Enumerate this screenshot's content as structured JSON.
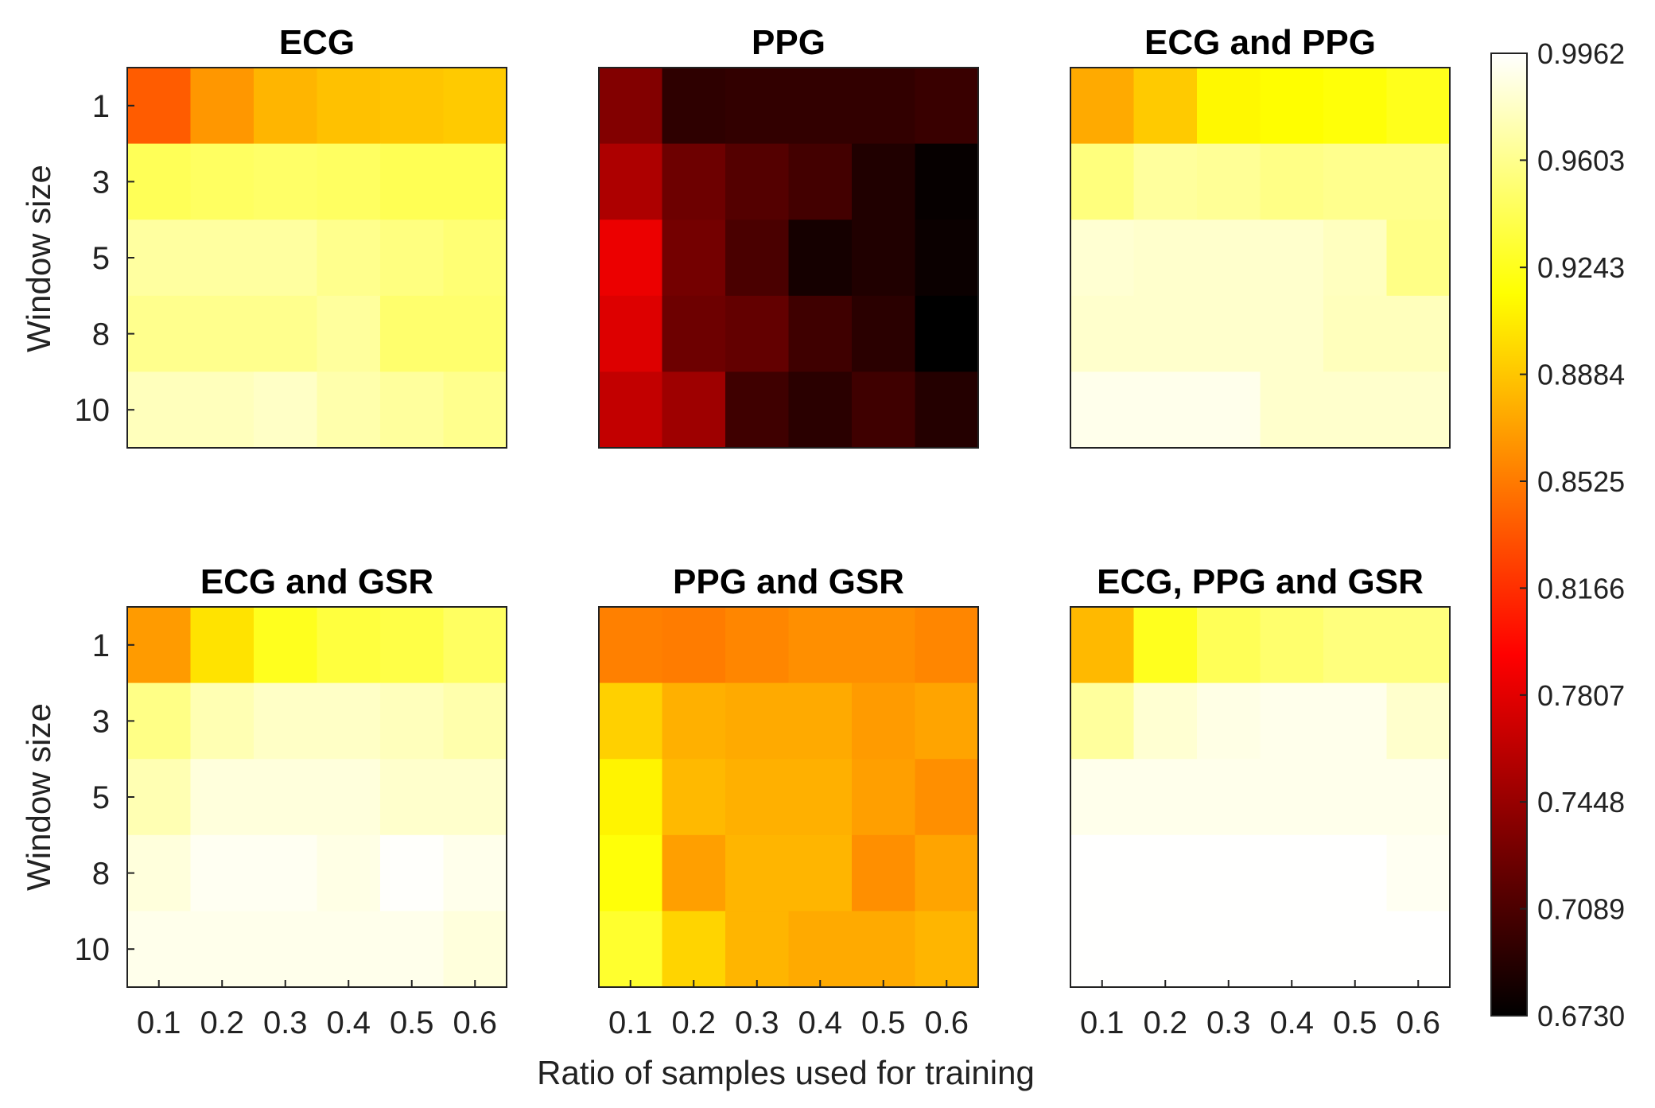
{
  "figure": {
    "xlabel": "Ratio of samples used for training",
    "ylabel": "Window size"
  },
  "chart_data": {
    "type": "heatmap",
    "x_categories": [
      "0.1",
      "0.2",
      "0.3",
      "0.4",
      "0.5",
      "0.6"
    ],
    "y_categories": [
      "1",
      "3",
      "5",
      "8",
      "10"
    ],
    "colormap": "hot",
    "value_range": [
      0.673,
      0.9962
    ],
    "colorbar_ticks": [
      "0.9962",
      "0.9603",
      "0.9243",
      "0.8884",
      "0.8525",
      "0.8166",
      "0.7807",
      "0.7448",
      "0.7089",
      "0.6730"
    ],
    "panels": [
      {
        "title": "ECG",
        "values": [
          [
            0.838,
            0.866,
            0.88,
            0.886,
            0.888,
            0.89
          ],
          [
            0.943,
            0.946,
            0.948,
            0.946,
            0.942,
            0.942
          ],
          [
            0.966,
            0.966,
            0.966,
            0.96,
            0.956,
            0.952
          ],
          [
            0.96,
            0.96,
            0.96,
            0.965,
            0.95,
            0.95
          ],
          [
            0.975,
            0.975,
            0.978,
            0.97,
            0.965,
            0.96
          ]
        ]
      },
      {
        "title": "PPG",
        "values": [
          [
            0.735,
            0.695,
            0.697,
            0.697,
            0.697,
            0.7
          ],
          [
            0.755,
            0.725,
            0.713,
            0.705,
            0.688,
            0.676
          ],
          [
            0.785,
            0.728,
            0.708,
            0.683,
            0.688,
            0.678
          ],
          [
            0.778,
            0.725,
            0.72,
            0.703,
            0.693,
            0.673
          ],
          [
            0.765,
            0.748,
            0.703,
            0.693,
            0.703,
            0.69
          ]
        ]
      },
      {
        "title": "ECG and PPG",
        "values": [
          [
            0.875,
            0.89,
            0.912,
            0.915,
            0.918,
            0.924
          ],
          [
            0.955,
            0.965,
            0.963,
            0.958,
            0.96,
            0.96
          ],
          [
            0.982,
            0.98,
            0.98,
            0.98,
            0.976,
            0.958
          ],
          [
            0.98,
            0.98,
            0.98,
            0.98,
            0.975,
            0.975
          ],
          [
            0.99,
            0.99,
            0.99,
            0.98,
            0.98,
            0.98
          ]
        ]
      },
      {
        "title": "ECG and GSR",
        "values": [
          [
            0.868,
            0.902,
            0.925,
            0.935,
            0.938,
            0.946
          ],
          [
            0.958,
            0.972,
            0.978,
            0.978,
            0.975,
            0.97
          ],
          [
            0.972,
            0.985,
            0.985,
            0.985,
            0.98,
            0.98
          ],
          [
            0.985,
            0.992,
            0.992,
            0.988,
            0.995,
            0.99
          ],
          [
            0.99,
            0.99,
            0.99,
            0.99,
            0.99,
            0.985
          ]
        ]
      },
      {
        "title": "PPG and GSR",
        "values": [
          [
            0.855,
            0.853,
            0.858,
            0.862,
            0.862,
            0.858
          ],
          [
            0.893,
            0.878,
            0.875,
            0.875,
            0.868,
            0.872
          ],
          [
            0.91,
            0.882,
            0.878,
            0.878,
            0.87,
            0.862
          ],
          [
            0.918,
            0.87,
            0.88,
            0.88,
            0.862,
            0.872
          ],
          [
            0.93,
            0.895,
            0.88,
            0.875,
            0.875,
            0.88
          ]
        ]
      },
      {
        "title": "ECG, PPG and GSR",
        "values": [
          [
            0.882,
            0.925,
            0.943,
            0.95,
            0.955,
            0.955
          ],
          [
            0.965,
            0.982,
            0.988,
            0.99,
            0.99,
            0.98
          ],
          [
            0.99,
            0.99,
            0.99,
            0.99,
            0.99,
            0.99
          ],
          [
            0.996,
            0.996,
            0.996,
            0.996,
            0.996,
            0.992
          ],
          [
            0.996,
            0.996,
            0.996,
            0.996,
            0.996,
            0.996
          ]
        ]
      }
    ]
  }
}
